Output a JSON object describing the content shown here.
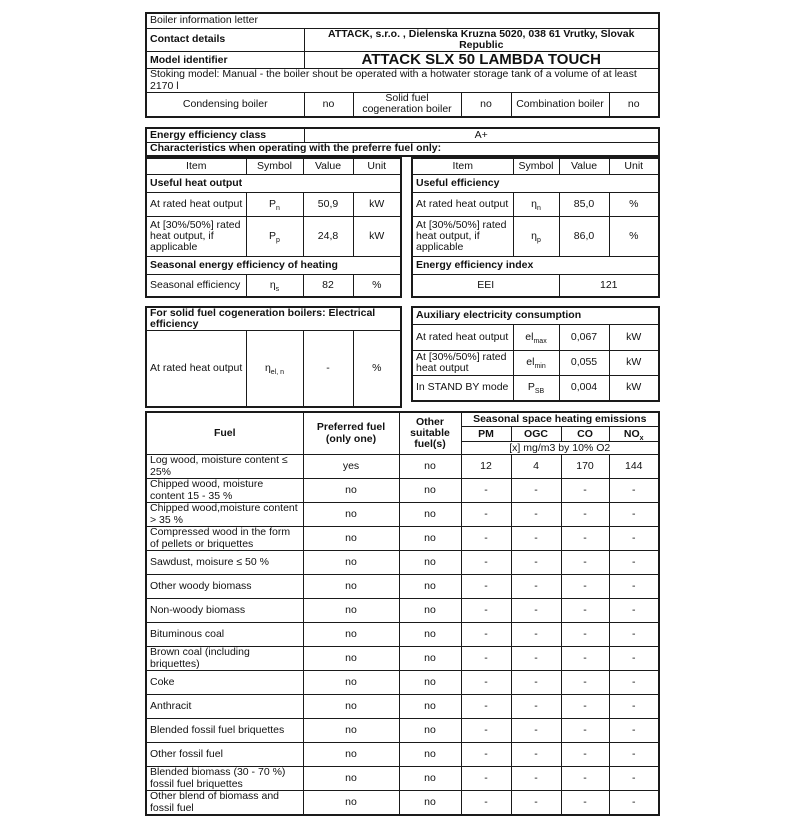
{
  "top": {
    "title": "Boiler information letter",
    "contact": {
      "label": "Contact details",
      "value": "ATTACK, s.r.o. , Dielenska Kruzna 5020, 038 61 Vrutky, Slovak Republic"
    },
    "model": {
      "label": "Model identifier",
      "value": "ATTACK SLX 50 LAMBDA TOUCH"
    },
    "stoking": "Stoking model: Manual - the boiler shout be operated with a hotwater storage tank of a volume of at least 2170 l",
    "types": [
      {
        "label": "Condensing boiler",
        "value": "no"
      },
      {
        "label": "Solid fuel cogeneration boiler",
        "value": "no"
      },
      {
        "label": "Combination boiler",
        "value": "no"
      }
    ]
  },
  "eff": {
    "class_label": "Energy efficiency class",
    "class_value": "A+",
    "note": "Characteristics when operating with the preferre fuel only:"
  },
  "cols": {
    "item": "Item",
    "symbol": "Symbol",
    "value": "Value",
    "unit": "Unit"
  },
  "characteristics": {
    "left": {
      "heat_output": {
        "title": "Useful heat output",
        "rows": [
          {
            "item": "At rated heat output",
            "sym": "P",
            "sub": "n",
            "value": "50,9",
            "unit": "kW"
          },
          {
            "item": "At  [30%/50%] rated heat output, if applicable",
            "sym": "P",
            "sub": "p",
            "value": "24,8",
            "unit": "kW"
          }
        ]
      },
      "seasonal": {
        "title": "Seasonal energy efficiency of heating",
        "row": {
          "item": "Seasonal efficiency",
          "sym": "η",
          "sub": "s",
          "value": "82",
          "unit": "%"
        }
      },
      "electrical": {
        "title": "For solid fuel cogeneration boilers: Electrical efficiency",
        "row": {
          "item": "At rated heat output",
          "sym": "η",
          "sub": "el, n",
          "value": "-",
          "unit": "%"
        }
      }
    },
    "right": {
      "efficiency": {
        "title": "Useful efficiency",
        "rows": [
          {
            "item": "At rated heat output",
            "sym": "η",
            "sub": "n",
            "value": "85,0",
            "unit": "%"
          },
          {
            "item": "At  [30%/50%] rated heat output, if applicable",
            "sym": "η",
            "sub": "p",
            "value": "86,0",
            "unit": "%"
          }
        ]
      },
      "eei": {
        "title": "Energy efficiency index",
        "label": "EEI",
        "value": "121"
      },
      "aux": {
        "title": "Auxiliary electricity consumption",
        "rows": [
          {
            "item": "At rated heat output",
            "sym": "el",
            "sub": "max",
            "value": "0,067",
            "unit": "kW"
          },
          {
            "item": "At  [30%/50%] rated heat output",
            "sym": "el",
            "sub": "min",
            "value": "0,055",
            "unit": "kW"
          },
          {
            "item": "In STAND BY mode",
            "sym": "P",
            "sub": "SB",
            "value": "0,004",
            "unit": "kW"
          }
        ]
      }
    }
  },
  "fuel": {
    "headers": {
      "fuel": "Fuel",
      "preferred": "Preferred fuel (only one)",
      "other": "Other suitable fuel(s)",
      "emissions": "Seasonal space heating emissions",
      "pm": "PM",
      "ogc": "OGC",
      "co": "CO",
      "nox_base": "NO",
      "nox_sub": "x",
      "note": "[x] mg/m3 by 10% O2"
    },
    "rows": [
      {
        "fuel": "Log wood, moisture content  ≤ 25%",
        "preferred": "yes",
        "other": "no",
        "pm": "12",
        "ogc": "4",
        "co": "170",
        "nox": "144"
      },
      {
        "fuel": "Chipped wood, moisture content  15 - 35 %",
        "preferred": "no",
        "other": "no",
        "pm": "-",
        "ogc": "-",
        "co": "-",
        "nox": "-"
      },
      {
        "fuel": "Chipped wood,moisture content  > 35 %",
        "preferred": "no",
        "other": "no",
        "pm": "-",
        "ogc": "-",
        "co": "-",
        "nox": "-"
      },
      {
        "fuel": "Compressed wood in the form of pellets or briquettes",
        "preferred": "no",
        "other": "no",
        "pm": "-",
        "ogc": "-",
        "co": "-",
        "nox": "-"
      },
      {
        "fuel": "Sawdust, moisure ≤ 50 %",
        "preferred": "no",
        "other": "no",
        "pm": "-",
        "ogc": "-",
        "co": "-",
        "nox": "-"
      },
      {
        "fuel": "Other woody biomass",
        "preferred": "no",
        "other": "no",
        "pm": "-",
        "ogc": "-",
        "co": "-",
        "nox": "-"
      },
      {
        "fuel": "Non-woody biomass",
        "preferred": "no",
        "other": "no",
        "pm": "-",
        "ogc": "-",
        "co": "-",
        "nox": "-"
      },
      {
        "fuel": "Bituminous coal",
        "preferred": "no",
        "other": "no",
        "pm": "-",
        "ogc": "-",
        "co": "-",
        "nox": "-"
      },
      {
        "fuel": "Brown coal  (including briquettes)",
        "preferred": "no",
        "other": "no",
        "pm": "-",
        "ogc": "-",
        "co": "-",
        "nox": "-"
      },
      {
        "fuel": "Coke",
        "preferred": "no",
        "other": "no",
        "pm": "-",
        "ogc": "-",
        "co": "-",
        "nox": "-"
      },
      {
        "fuel": "Anthracit",
        "preferred": "no",
        "other": "no",
        "pm": "-",
        "ogc": "-",
        "co": "-",
        "nox": "-"
      },
      {
        "fuel": "Blended fossil fuel  briquettes",
        "preferred": "no",
        "other": "no",
        "pm": "-",
        "ogc": "-",
        "co": "-",
        "nox": "-"
      },
      {
        "fuel": "Other fossil fuel",
        "preferred": "no",
        "other": "no",
        "pm": "-",
        "ogc": "-",
        "co": "-",
        "nox": "-"
      },
      {
        "fuel": "Blended biomass (30 - 70 %) fossil fuel briquettes",
        "preferred": "no",
        "other": "no",
        "pm": "-",
        "ogc": "-",
        "co": "-",
        "nox": "-"
      },
      {
        "fuel": "Other blend of biomass and fossil fuel",
        "preferred": "no",
        "other": "no",
        "pm": "-",
        "ogc": "-",
        "co": "-",
        "nox": "-"
      }
    ]
  }
}
